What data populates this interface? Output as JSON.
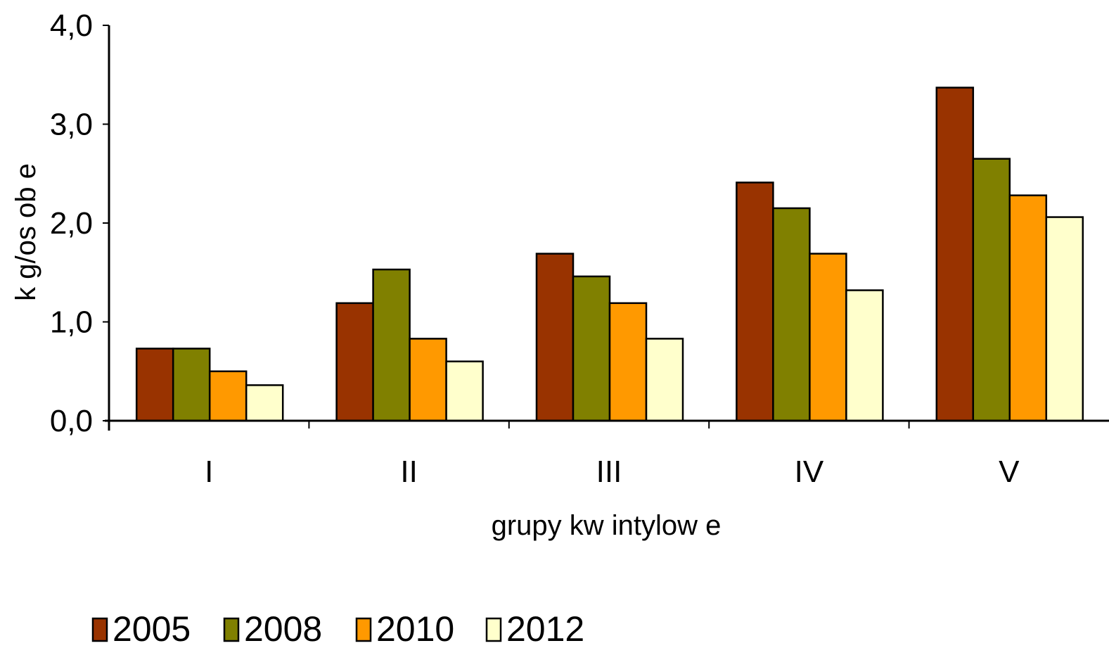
{
  "chart_data": {
    "type": "bar",
    "title": "",
    "xlabel": "grupy kw intylow e",
    "ylabel": "k g/os ob e",
    "ylim": [
      0,
      4
    ],
    "yticks": [
      "0,0",
      "1,0",
      "2,0",
      "3,0",
      "4,0"
    ],
    "categories": [
      "I",
      "II",
      "III",
      "IV",
      "V"
    ],
    "series": [
      {
        "name": "2005",
        "color": "#993300",
        "values": [
          0.73,
          1.19,
          1.69,
          2.41,
          3.37
        ]
      },
      {
        "name": "2008",
        "color": "#808000",
        "values": [
          0.73,
          1.53,
          1.46,
          2.15,
          2.65
        ]
      },
      {
        "name": "2010",
        "color": "#FF9900",
        "values": [
          0.5,
          0.83,
          1.19,
          1.69,
          2.28
        ]
      },
      {
        "name": "2012",
        "color": "#FFFFCC",
        "values": [
          0.36,
          0.6,
          0.83,
          1.32,
          2.06
        ]
      }
    ],
    "grid": false,
    "legend_position": "bottom-left"
  }
}
